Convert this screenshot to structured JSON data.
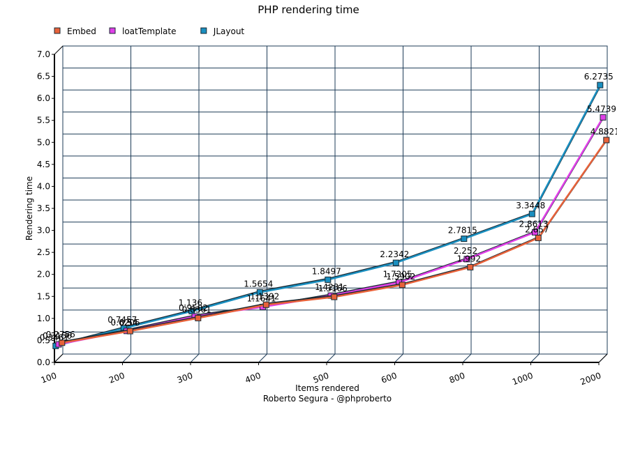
{
  "chart_data": {
    "type": "line",
    "title": "PHP rendering time",
    "xlabel": "Items rendered",
    "subtitle": "Roberto Segura - @phproberto",
    "ylabel": "Rendering time",
    "categories": [
      "100",
      "200",
      "300",
      "400",
      "500",
      "600",
      "800",
      "1000",
      "2000"
    ],
    "ylim": [
      0,
      7
    ],
    "yticks": [
      "0.0",
      "0.5",
      "1.0",
      "1.5",
      "2.0",
      "2.5",
      "3.0",
      "3.5",
      "4.0",
      "4.5",
      "5.0",
      "5.5",
      "6.0",
      "6.5",
      "7.0"
    ],
    "grid": true,
    "legend_position": "top-left",
    "series": [
      {
        "name": "Embed",
        "color": "#e8623a",
        "values": [
          0.2756,
          0.54,
          0.8361,
          1.1392,
          1.3166,
          1.5902,
          1.992,
          2.657,
          4.8821
        ],
        "labels": [
          "0.2756",
          "0.54",
          "0.8361",
          "1.1392",
          "1.3166",
          "1.5902",
          "1.992",
          "2.657",
          "4.8821"
        ]
      },
      {
        "name": "loatTemplate",
        "color": "#e040e8",
        "values": [
          0.3156,
          0.6206,
          0.9502,
          1.1641,
          1.4231,
          1.7205,
          2.252,
          2.8613,
          5.4739
        ],
        "labels": [
          "0.3156",
          "0.6206",
          "0.9502",
          "1.1641",
          "1.4231",
          "1.7205",
          "2.252",
          "2.8613",
          "5.4739"
        ]
      },
      {
        "name": "JLayout",
        "color": "#1a8fc0",
        "values": [
          0.3461,
          0.7457,
          1.136,
          1.5654,
          1.8497,
          2.2342,
          2.7815,
          3.3448,
          6.2735
        ],
        "labels": [
          "0.3461",
          "0.7457",
          "1.136",
          "1.5654",
          "1.8497",
          "2.2342",
          "2.7815",
          "3.3448",
          "6.2735"
        ]
      }
    ]
  }
}
